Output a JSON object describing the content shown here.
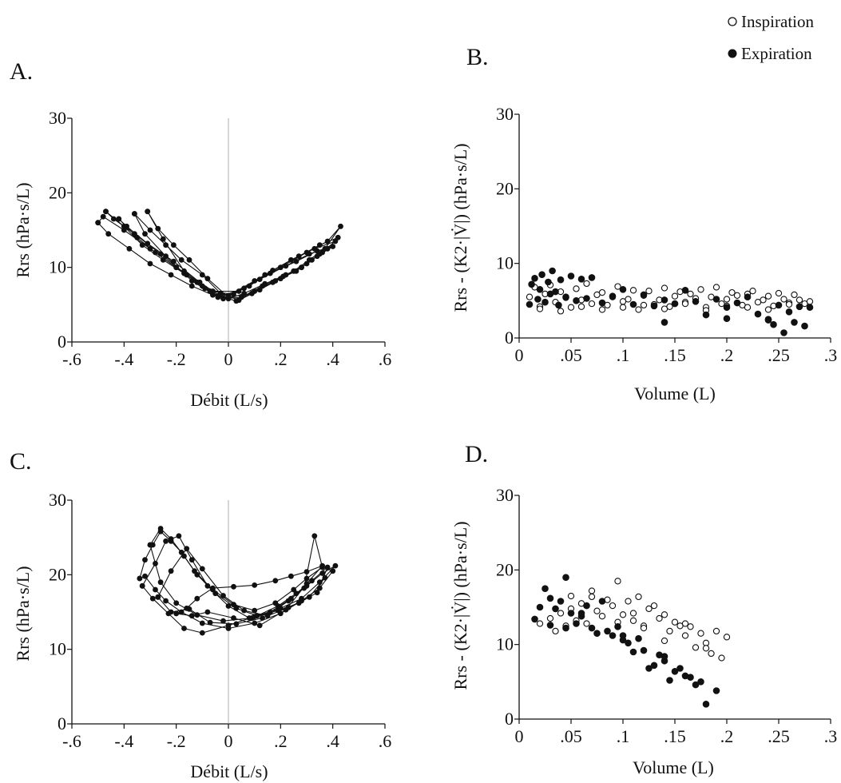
{
  "legend": [
    {
      "label": "Inspiration",
      "marker": "open-circle"
    },
    {
      "label": "Expiration",
      "marker": "filled-circle"
    }
  ],
  "colors": {
    "ink": "#111111",
    "grid": "#999999",
    "background": "#ffffff"
  },
  "chart_data": [
    {
      "id": "A",
      "panel_label": "A.",
      "type": "line",
      "xlabel": "Débit (L/s)",
      "ylabel": "Rrs (hPa·s/L)",
      "xlim": [
        -0.6,
        0.6
      ],
      "ylim": [
        0,
        30
      ],
      "xticks": [
        -0.6,
        -0.4,
        -0.2,
        0,
        0.2,
        0.4,
        0.6
      ],
      "xtick_labels": [
        "-.6",
        "-.4",
        "-.2",
        "0",
        ".2",
        ".4",
        ".6"
      ],
      "yticks": [
        0,
        10,
        20,
        30
      ],
      "ytick_labels": [
        "0",
        "10",
        "20",
        "30"
      ],
      "zero_line": true,
      "series": [
        {
          "x": [
            -0.5,
            -0.46,
            -0.38,
            -0.3,
            -0.22,
            -0.14,
            -0.06,
            0.0,
            0.06,
            0.14,
            0.22,
            0.3,
            0.36,
            0.43,
            0.38,
            0.3,
            0.2,
            0.1,
            0.0,
            -0.1,
            -0.2,
            -0.3,
            -0.4,
            -0.48,
            -0.5
          ],
          "y": [
            16,
            14.5,
            12.5,
            10.5,
            9,
            7.5,
            6.3,
            5.8,
            6.5,
            7.8,
            9,
            10.5,
            12,
            15.5,
            13.5,
            12,
            10,
            8.2,
            6.2,
            7.5,
            10,
            12.5,
            15,
            16.8,
            16
          ]
        },
        {
          "x": [
            -0.47,
            -0.4,
            -0.33,
            -0.25,
            -0.17,
            -0.09,
            -0.02,
            0.05,
            0.13,
            0.21,
            0.28,
            0.35,
            0.41,
            0.33,
            0.24,
            0.14,
            0.04,
            -0.06,
            -0.16,
            -0.26,
            -0.36,
            -0.44,
            -0.47
          ],
          "y": [
            17.5,
            15.5,
            13,
            11,
            9.2,
            7.2,
            5.8,
            6,
            7.5,
            8.8,
            10,
            11.8,
            13.5,
            12.5,
            11,
            9,
            6.8,
            6.8,
            9,
            11.8,
            14.5,
            16.5,
            17.5
          ]
        },
        {
          "x": [
            -0.42,
            -0.35,
            -0.28,
            -0.2,
            -0.12,
            -0.04,
            0.03,
            0.1,
            0.18,
            0.26,
            0.32,
            0.38,
            0.42,
            0.35,
            0.27,
            0.17,
            0.08,
            -0.02,
            -0.11,
            -0.21,
            -0.31,
            -0.39,
            -0.42
          ],
          "y": [
            16.5,
            14,
            12,
            10,
            8,
            6.2,
            5.5,
            6.8,
            8.2,
            9.5,
            11,
            12.5,
            14,
            13,
            11.5,
            9.6,
            7.5,
            5.9,
            8,
            10.8,
            13.2,
            15.5,
            16.5
          ]
        },
        {
          "x": [
            -0.36,
            -0.3,
            -0.24,
            -0.18,
            -0.1,
            -0.03,
            0.04,
            0.12,
            0.2,
            0.28,
            0.34,
            0.4,
            0.34,
            0.26,
            0.16,
            0.06,
            -0.04,
            -0.14,
            -0.24,
            -0.32,
            -0.36
          ],
          "y": [
            17.2,
            15,
            13,
            11,
            9,
            6.5,
            5.6,
            7,
            8.5,
            10,
            11.5,
            12.8,
            12.2,
            10.8,
            9.2,
            7.2,
            6,
            8.2,
            11.5,
            14.5,
            17.2
          ]
        },
        {
          "x": [
            -0.31,
            -0.27,
            -0.21,
            -0.15,
            -0.08,
            0.0,
            0.09,
            0.17,
            0.25,
            0.31,
            0.37,
            0.31,
            0.22,
            0.12,
            0.02,
            -0.07,
            -0.17,
            -0.25,
            -0.31
          ],
          "y": [
            17.5,
            15.2,
            13,
            11,
            8.5,
            6,
            6.5,
            8,
            9.5,
            11,
            12.5,
            11.8,
            10.2,
            8.4,
            6.4,
            6.8,
            9.5,
            13.8,
            17.5
          ]
        }
      ]
    },
    {
      "id": "B",
      "panel_label": "B.",
      "type": "scatter",
      "xlabel": "Volume (L)",
      "ylabel": "Rrs - (K2·|V̇|)  (hPa·s/L)",
      "xlim": [
        0,
        0.3
      ],
      "ylim": [
        0,
        30
      ],
      "xticks": [
        0,
        0.05,
        0.1,
        0.15,
        0.2,
        0.25,
        0.3
      ],
      "xtick_labels": [
        "0",
        ".05",
        ".1",
        ".15",
        ".2",
        ".25",
        ".3"
      ],
      "yticks": [
        0,
        10,
        20,
        30
      ],
      "ytick_labels": [
        "0",
        "10",
        "20",
        "30"
      ],
      "zero_line": false,
      "series": [
        {
          "name": "Inspiration",
          "marker": "open-circle",
          "x": [
            0.01,
            0.015,
            0.02,
            0.025,
            0.03,
            0.035,
            0.04,
            0.045,
            0.05,
            0.055,
            0.06,
            0.065,
            0.07,
            0.075,
            0.08,
            0.085,
            0.09,
            0.095,
            0.1,
            0.105,
            0.11,
            0.115,
            0.12,
            0.125,
            0.13,
            0.135,
            0.14,
            0.145,
            0.15,
            0.155,
            0.16,
            0.165,
            0.17,
            0.175,
            0.18,
            0.185,
            0.19,
            0.195,
            0.2,
            0.205,
            0.21,
            0.215,
            0.22,
            0.225,
            0.23,
            0.235,
            0.24,
            0.245,
            0.25,
            0.255,
            0.26,
            0.265,
            0.27,
            0.275,
            0.28,
            0.02,
            0.04,
            0.06,
            0.08,
            0.1,
            0.12,
            0.14,
            0.16,
            0.18,
            0.2,
            0.22,
            0.24,
            0.26
          ],
          "y": [
            5.5,
            6.8,
            4.2,
            5.9,
            7.1,
            4.8,
            6.2,
            5.4,
            4.1,
            6.6,
            5.1,
            7.3,
            4.6,
            5.8,
            6.1,
            4.4,
            5.5,
            6.9,
            4.9,
            5.2,
            6.4,
            3.8,
            5.7,
            6.3,
            4.5,
            5.1,
            6.7,
            4.2,
            5.6,
            6.2,
            4.8,
            5.9,
            5.3,
            6.5,
            4.1,
            5.5,
            6.8,
            4.6,
            5.2,
            6.1,
            5.7,
            4.4,
            5.9,
            6.3,
            4.8,
            5.1,
            5.6,
            4.3,
            6,
            5.2,
            4.7,
            5.8,
            5.1,
            4.6,
            4.9,
            3.9,
            3.6,
            4.2,
            3.8,
            4.1,
            4.4,
            3.9,
            4.6,
            3.7,
            4.3,
            4.1,
            3.8,
            4.5
          ]
        },
        {
          "name": "Expiration",
          "marker": "filled-circle",
          "x": [
            0.01,
            0.012,
            0.015,
            0.018,
            0.02,
            0.022,
            0.025,
            0.028,
            0.03,
            0.032,
            0.035,
            0.038,
            0.04,
            0.045,
            0.05,
            0.055,
            0.06,
            0.065,
            0.07,
            0.08,
            0.09,
            0.1,
            0.11,
            0.12,
            0.13,
            0.14,
            0.15,
            0.16,
            0.17,
            0.18,
            0.19,
            0.2,
            0.21,
            0.22,
            0.23,
            0.24,
            0.245,
            0.25,
            0.255,
            0.26,
            0.265,
            0.27,
            0.275,
            0.28,
            0.14,
            0.2,
            0.24
          ],
          "y": [
            4.5,
            7.2,
            8,
            5.2,
            6.5,
            8.5,
            4.8,
            7.5,
            5.9,
            9,
            6.2,
            4.4,
            7.8,
            5.5,
            8.3,
            5,
            7.9,
            5.3,
            8.1,
            4.7,
            5.6,
            6.5,
            4.5,
            5.8,
            4.3,
            5.1,
            4.6,
            6.4,
            4.9,
            3.1,
            5.2,
            4.1,
            4.7,
            5.5,
            3.2,
            2.5,
            1.8,
            4.4,
            0.7,
            3.5,
            2.1,
            4.2,
            1.6,
            4.1,
            2.1,
            2.6,
            2.4
          ]
        }
      ]
    },
    {
      "id": "C",
      "panel_label": "C.",
      "type": "line",
      "xlabel": "Débit (L/s)",
      "ylabel": "Rrs (hPa·s/L)",
      "xlim": [
        -0.6,
        0.6
      ],
      "ylim": [
        0,
        30
      ],
      "xticks": [
        -0.6,
        -0.4,
        -0.2,
        0,
        0.2,
        0.4,
        0.6
      ],
      "xtick_labels": [
        "-.6",
        "-.4",
        "-.2",
        "0",
        ".2",
        ".4",
        ".6"
      ],
      "yticks": [
        0,
        10,
        20,
        30
      ],
      "ytick_labels": [
        "0",
        "10",
        "20",
        "30"
      ],
      "zero_line": true,
      "series": [
        {
          "x": [
            -0.34,
            -0.32,
            -0.29,
            -0.26,
            -0.22,
            -0.18,
            -0.13,
            -0.06,
            0.02,
            0.1,
            0.18,
            0.25,
            0.3,
            0.36,
            0.4,
            0.35,
            0.28,
            0.2,
            0.1,
            0.0,
            -0.1,
            -0.18,
            -0.24,
            -0.28,
            -0.32,
            -0.34
          ],
          "y": [
            19.5,
            22,
            24,
            25.8,
            24.5,
            23,
            20.5,
            18,
            16,
            15.2,
            16.2,
            18,
            19.5,
            21,
            20.5,
            18.2,
            16.5,
            14.8,
            13.5,
            12.8,
            13.5,
            15,
            16.5,
            18,
            19.8,
            19.5
          ]
        },
        {
          "x": [
            -0.3,
            -0.26,
            -0.22,
            -0.17,
            -0.12,
            -0.05,
            0.03,
            0.11,
            0.19,
            0.26,
            0.32,
            0.38,
            0.34,
            0.27,
            0.19,
            0.09,
            -0.02,
            -0.12,
            -0.2,
            -0.26,
            -0.3
          ],
          "y": [
            24,
            26.2,
            24.8,
            22.5,
            20,
            17.5,
            15.5,
            14.5,
            15.8,
            17.5,
            19.2,
            21,
            17.6,
            16.2,
            15.2,
            14.2,
            13.8,
            14.6,
            16.2,
            19,
            24
          ]
        },
        {
          "x": [
            -0.33,
            -0.28,
            -0.24,
            -0.19,
            -0.14,
            -0.08,
            0.0,
            0.08,
            0.16,
            0.24,
            0.3,
            0.36,
            0.41,
            0.35,
            0.28,
            0.2,
            0.1,
            0.0,
            -0.1,
            -0.17,
            -0.23,
            -0.29,
            -0.33
          ],
          "y": [
            18.5,
            21.5,
            24.5,
            25.2,
            22,
            18.5,
            15.8,
            14.2,
            15,
            16.8,
            18.5,
            20.2,
            21.2,
            19,
            16.8,
            15.5,
            14.4,
            13.2,
            12.2,
            12.8,
            14.8,
            16.8,
            18.5
          ]
        },
        {
          "x": [
            -0.27,
            -0.22,
            -0.16,
            -0.1,
            -0.02,
            0.06,
            0.15,
            0.23,
            0.29,
            0.33,
            0.37,
            0.31,
            0.23,
            0.13,
            0.03,
            -0.07,
            -0.15,
            -0.22,
            -0.27
          ],
          "y": [
            17,
            20.5,
            23.5,
            20.8,
            17.2,
            15.2,
            14.5,
            16.5,
            18.2,
            25.2,
            19.6,
            17,
            15.6,
            14.2,
            13.4,
            13.6,
            15.4,
            15,
            17
          ]
        },
        {
          "x": [
            -0.2,
            -0.16,
            -0.12,
            -0.06,
            0.02,
            0.1,
            0.18,
            0.24,
            0.3,
            0.36,
            0.3,
            0.22,
            0.12,
            0.02,
            -0.08,
            -0.14,
            -0.2
          ],
          "y": [
            14.8,
            15.5,
            16.8,
            18.2,
            18.4,
            18.6,
            19.2,
            19.8,
            20.4,
            21.2,
            18.8,
            15.3,
            13.2,
            14.2,
            15,
            14.5,
            14.8
          ]
        }
      ]
    },
    {
      "id": "D",
      "panel_label": "D.",
      "type": "scatter",
      "xlabel": "Volume (L)",
      "ylabel": "Rrs - (K2·|V̇|)  (hPa·s/L)",
      "xlim": [
        0,
        0.3
      ],
      "ylim": [
        0,
        30
      ],
      "xticks": [
        0,
        0.05,
        0.1,
        0.15,
        0.2,
        0.25,
        0.3
      ],
      "xtick_labels": [
        "0",
        ".05",
        ".1",
        ".15",
        ".2",
        ".25",
        ".3"
      ],
      "yticks": [
        0,
        10,
        20,
        30
      ],
      "ytick_labels": [
        "0",
        "10",
        "20",
        "30"
      ],
      "zero_line": false,
      "series": [
        {
          "name": "Inspiration",
          "marker": "open-circle",
          "x": [
            0.02,
            0.03,
            0.035,
            0.04,
            0.045,
            0.05,
            0.055,
            0.06,
            0.065,
            0.07,
            0.075,
            0.08,
            0.085,
            0.09,
            0.095,
            0.1,
            0.105,
            0.11,
            0.115,
            0.12,
            0.125,
            0.13,
            0.135,
            0.14,
            0.145,
            0.15,
            0.155,
            0.16,
            0.165,
            0.17,
            0.175,
            0.18,
            0.185,
            0.19,
            0.195,
            0.2,
            0.095,
            0.12,
            0.14,
            0.16,
            0.18,
            0.05,
            0.07,
            0.11
          ],
          "y": [
            12.8,
            13.5,
            11.8,
            14.2,
            12.5,
            16.5,
            13.2,
            15.5,
            12.8,
            17.2,
            14.5,
            13.8,
            16,
            15.2,
            18.5,
            14,
            15.8,
            13.2,
            16.4,
            12.5,
            14.8,
            15.2,
            13.5,
            14,
            11.8,
            13,
            12.5,
            11.2,
            12.4,
            9.6,
            11.5,
            10.2,
            8.8,
            11.8,
            8.2,
            11,
            13,
            12.2,
            10.5,
            12.8,
            9.5,
            14.8,
            16.4,
            14.2
          ]
        },
        {
          "name": "Expiration",
          "marker": "filled-circle",
          "x": [
            0.015,
            0.02,
            0.025,
            0.03,
            0.035,
            0.04,
            0.045,
            0.05,
            0.055,
            0.06,
            0.065,
            0.07,
            0.075,
            0.08,
            0.085,
            0.09,
            0.095,
            0.1,
            0.105,
            0.11,
            0.115,
            0.12,
            0.125,
            0.13,
            0.135,
            0.14,
            0.145,
            0.15,
            0.155,
            0.16,
            0.165,
            0.17,
            0.175,
            0.18,
            0.19,
            0.03,
            0.045,
            0.06,
            0.1,
            0.14
          ],
          "y": [
            13.4,
            15,
            17.5,
            16.2,
            14.8,
            15.8,
            19,
            14.2,
            12.8,
            13.8,
            15.2,
            12.2,
            11.5,
            15.8,
            11.8,
            11.2,
            12.4,
            11.2,
            10.2,
            9,
            10.8,
            9.2,
            6.8,
            7.2,
            8.6,
            7.8,
            5.2,
            6.4,
            6.8,
            5.8,
            5.6,
            4.6,
            5,
            2,
            3.8,
            12.6,
            12.2,
            14.2,
            10.6,
            8.4
          ]
        }
      ]
    }
  ]
}
